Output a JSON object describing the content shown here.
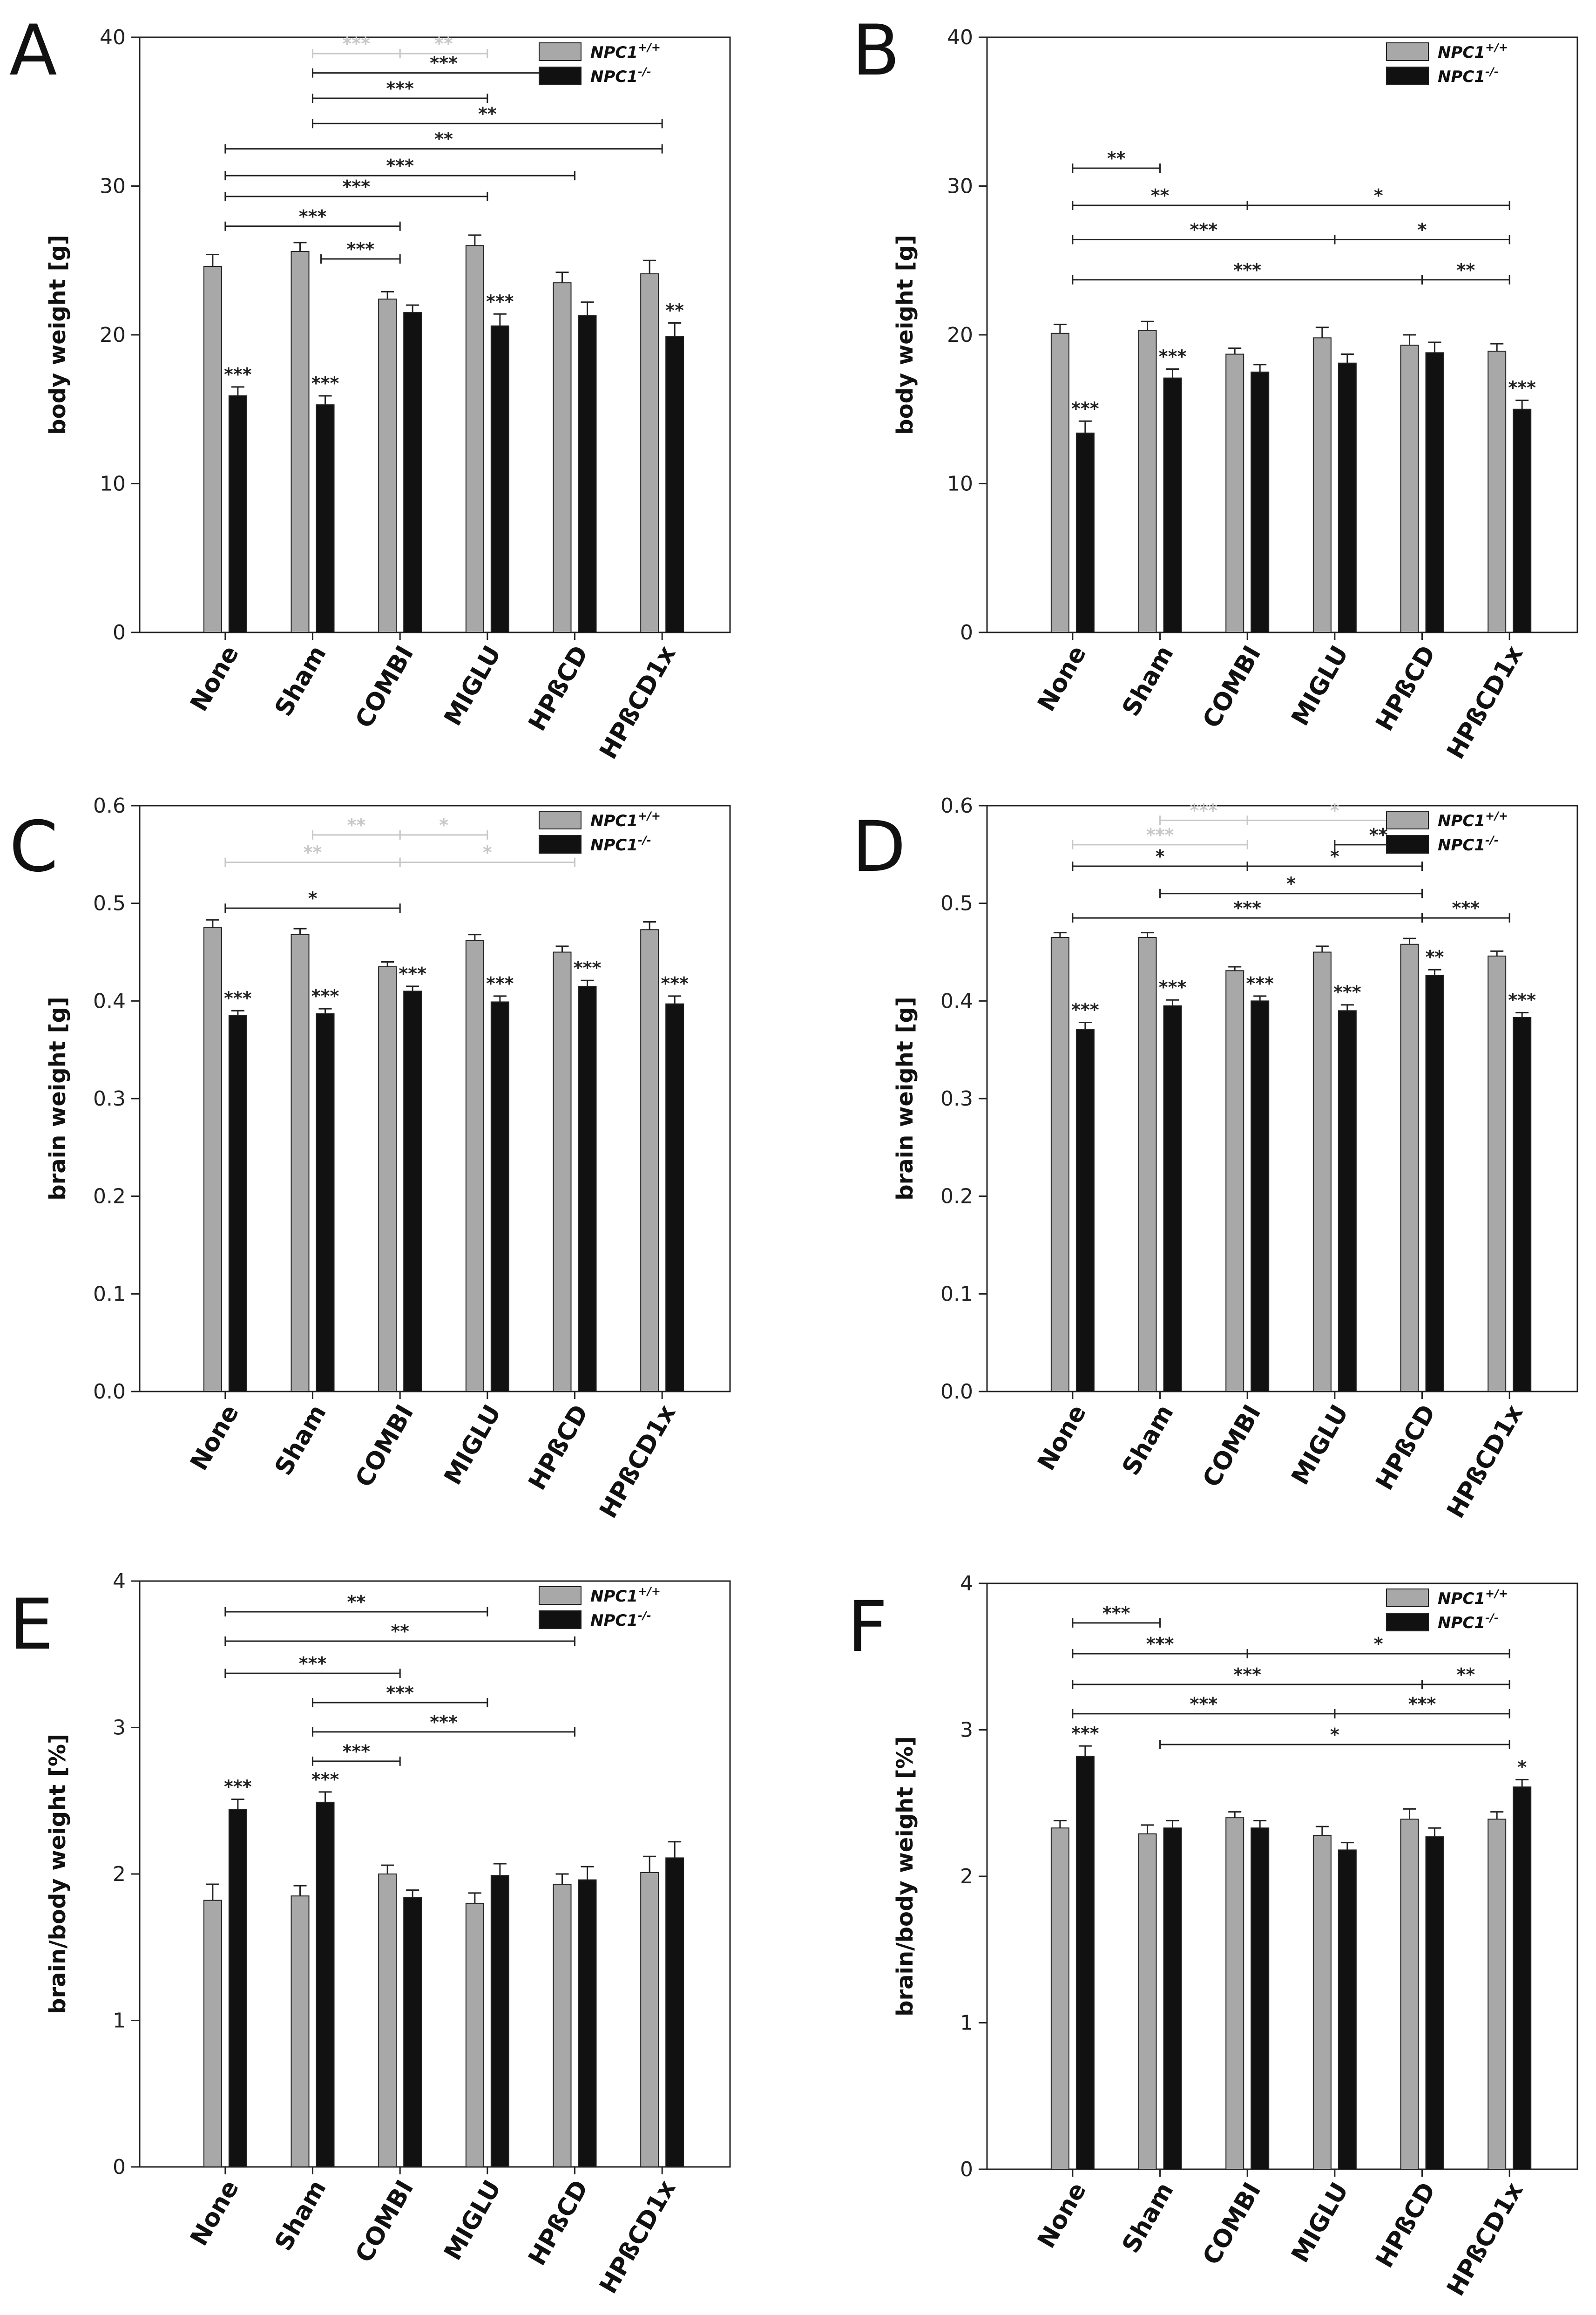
{
  "figure": {
    "legend_wt": "NPC1",
    "legend_wt_sup": "+/+",
    "legend_ko": "NPC1",
    "legend_ko_sup": "-/-"
  },
  "colors": {
    "wt": "#a8a8a8",
    "ko": "#111111",
    "axis": "#222222",
    "bracket_dark": "#222222",
    "bracket_light": "#c8c8c8"
  },
  "chart_data": [
    {
      "panel": "A",
      "type": "bar",
      "ylabel": "body weight [g]",
      "ylim": [
        0,
        40
      ],
      "yticks": [
        0,
        10,
        20,
        30,
        40
      ],
      "ytick_labels": [
        "0",
        "10",
        "20",
        "30",
        "40"
      ],
      "categories": [
        "None",
        "Sham",
        "COMBI",
        "MIGLU",
        "HPßCD",
        "HPßCD1x"
      ],
      "series": [
        {
          "name": "NPC1+/+",
          "values": [
            24.6,
            25.6,
            22.4,
            26.0,
            23.5,
            24.1
          ],
          "errors": [
            0.8,
            0.6,
            0.5,
            0.7,
            0.7,
            0.9
          ],
          "stars": [
            "",
            "",
            "",
            "",
            "",
            ""
          ]
        },
        {
          "name": "NPC1-/-",
          "values": [
            15.9,
            15.3,
            21.5,
            20.6,
            21.3,
            19.9
          ],
          "errors": [
            0.6,
            0.6,
            0.5,
            0.8,
            0.9,
            0.9
          ],
          "stars": [
            "***",
            "***",
            "",
            "***",
            "",
            "**"
          ]
        }
      ],
      "brackets": [
        {
          "x1": 1,
          "x2": 2,
          "y": 38.9,
          "label": "***",
          "light": true,
          "mid": 1.52
        },
        {
          "x1": 2,
          "x2": 3,
          "y": 38.9,
          "label": "**",
          "light": true,
          "mid": 1.52
        },
        {
          "x1": 1,
          "x2": 4,
          "y": 37.6,
          "label": "***"
        },
        {
          "x1": 1,
          "x2": 3,
          "y": 35.9,
          "label": "***"
        },
        {
          "x1": 1,
          "x2": 5,
          "y": 34.2,
          "label": "**"
        },
        {
          "x1": 0,
          "x2": 5,
          "y": 32.5,
          "label": "**"
        },
        {
          "x1": 0,
          "x2": 4,
          "y": 30.7,
          "label": "***"
        },
        {
          "x1": 0,
          "x2": 3,
          "y": 29.3,
          "label": "***"
        },
        {
          "x1": 0,
          "x2": 2,
          "y": 27.3,
          "label": "***"
        },
        {
          "x1": 1,
          "x2": 2,
          "y": 25.1,
          "label": "***",
          "short": true
        }
      ]
    },
    {
      "panel": "B",
      "type": "bar",
      "ylabel": "body weight [g]",
      "ylim": [
        0,
        40
      ],
      "yticks": [
        0,
        10,
        20,
        30,
        40
      ],
      "ytick_labels": [
        "0",
        "10",
        "20",
        "30",
        "40"
      ],
      "categories": [
        "None",
        "Sham",
        "COMBI",
        "MIGLU",
        "HPßCD",
        "HPßCD1x"
      ],
      "series": [
        {
          "name": "NPC1+/+",
          "values": [
            20.1,
            20.3,
            18.7,
            19.8,
            19.3,
            18.9
          ],
          "errors": [
            0.6,
            0.6,
            0.4,
            0.7,
            0.7,
            0.5
          ],
          "stars": [
            "",
            "",
            "",
            "",
            "",
            ""
          ]
        },
        {
          "name": "NPC1-/-",
          "values": [
            13.4,
            17.1,
            17.5,
            18.1,
            18.8,
            15.0
          ],
          "errors": [
            0.8,
            0.6,
            0.5,
            0.6,
            0.7,
            0.6
          ],
          "stars": [
            "***",
            "***",
            "",
            "",
            "",
            "***"
          ]
        }
      ],
      "brackets": [
        {
          "x1": 0,
          "x2": 1,
          "y": 31.2,
          "label": "**"
        },
        {
          "x1": 0,
          "x2": 2,
          "y": 28.7,
          "label": "**"
        },
        {
          "x1": 2,
          "x2": 5,
          "y": 28.7,
          "label": "*"
        },
        {
          "x1": 0,
          "x2": 3,
          "y": 26.4,
          "label": "***"
        },
        {
          "x1": 3,
          "x2": 5,
          "y": 26.4,
          "label": "*"
        },
        {
          "x1": 0,
          "x2": 4,
          "y": 23.7,
          "label": "***"
        },
        {
          "x1": 4,
          "x2": 5,
          "y": 23.7,
          "label": "**"
        }
      ]
    },
    {
      "panel": "C",
      "type": "bar",
      "ylabel": "brain weight [g]",
      "ylim": [
        0,
        0.6
      ],
      "yticks": [
        0,
        0.1,
        0.2,
        0.3,
        0.4,
        0.5,
        0.6
      ],
      "ytick_labels": [
        "0.0",
        "0.1",
        "0.2",
        "0.3",
        "0.4",
        "0.5",
        "0.6"
      ],
      "categories": [
        "None",
        "Sham",
        "COMBI",
        "MIGLU",
        "HPßCD",
        "HPßCD1x"
      ],
      "series": [
        {
          "name": "NPC1+/+",
          "values": [
            0.475,
            0.468,
            0.435,
            0.462,
            0.45,
            0.473
          ],
          "errors": [
            0.008,
            0.006,
            0.005,
            0.006,
            0.006,
            0.008
          ],
          "stars": [
            "",
            "",
            "",
            "",
            "",
            ""
          ]
        },
        {
          "name": "NPC1-/-",
          "values": [
            0.385,
            0.387,
            0.41,
            0.399,
            0.415,
            0.397
          ],
          "errors": [
            0.005,
            0.005,
            0.005,
            0.006,
            0.006,
            0.008
          ],
          "stars": [
            "***",
            "***",
            "***",
            "***",
            "***",
            "***"
          ]
        }
      ],
      "brackets": [
        {
          "x1": 1,
          "x2": 2,
          "y": 0.57,
          "label": "**",
          "light": true
        },
        {
          "x1": 2,
          "x2": 3,
          "y": 0.57,
          "label": "*",
          "light": true
        },
        {
          "x1": 0,
          "x2": 2,
          "y": 0.542,
          "label": "**",
          "light": true
        },
        {
          "x1": 2,
          "x2": 4,
          "y": 0.542,
          "label": "*",
          "light": true
        },
        {
          "x1": 0,
          "x2": 2,
          "y": 0.495,
          "label": "*"
        }
      ]
    },
    {
      "panel": "D",
      "type": "bar",
      "ylabel": "brain weight [g]",
      "ylim": [
        0,
        0.6
      ],
      "yticks": [
        0,
        0.1,
        0.2,
        0.3,
        0.4,
        0.5,
        0.6
      ],
      "ytick_labels": [
        "0.0",
        "0.1",
        "0.2",
        "0.3",
        "0.4",
        "0.5",
        "0.6"
      ],
      "categories": [
        "None",
        "Sham",
        "COMBI",
        "MIGLU",
        "HPßCD",
        "HPßCD1x"
      ],
      "series": [
        {
          "name": "NPC1+/+",
          "values": [
            0.465,
            0.465,
            0.431,
            0.45,
            0.458,
            0.446
          ],
          "errors": [
            0.005,
            0.005,
            0.004,
            0.006,
            0.006,
            0.005
          ],
          "stars": [
            "",
            "",
            "",
            "",
            "",
            ""
          ]
        },
        {
          "name": "NPC1-/-",
          "values": [
            0.371,
            0.395,
            0.4,
            0.39,
            0.426,
            0.383
          ],
          "errors": [
            0.007,
            0.006,
            0.005,
            0.006,
            0.006,
            0.005
          ],
          "stars": [
            "***",
            "***",
            "***",
            "***",
            "**",
            "***"
          ]
        }
      ],
      "brackets": [
        {
          "x1": 1,
          "x2": 2,
          "y": 0.585,
          "label": "***",
          "light": true
        },
        {
          "x1": 2,
          "x2": 4,
          "y": 0.585,
          "label": "*",
          "light": true
        },
        {
          "x1": 0,
          "x2": 2,
          "y": 0.56,
          "label": "***",
          "light": true
        },
        {
          "x1": 3,
          "x2": 4,
          "y": 0.56,
          "label": "**"
        },
        {
          "x1": 0,
          "x2": 2,
          "y": 0.538,
          "label": "*"
        },
        {
          "x1": 2,
          "x2": 4,
          "y": 0.538,
          "label": "*"
        },
        {
          "x1": 1,
          "x2": 4,
          "y": 0.51,
          "label": "*"
        },
        {
          "x1": 0,
          "x2": 4,
          "y": 0.485,
          "label": "***"
        },
        {
          "x1": 4,
          "x2": 5,
          "y": 0.485,
          "label": "***"
        }
      ]
    },
    {
      "panel": "E",
      "type": "bar",
      "ylabel": "brain/body weight [%]",
      "ylim": [
        0,
        4
      ],
      "yticks": [
        0,
        1,
        2,
        3,
        4
      ],
      "ytick_labels": [
        "0",
        "1",
        "2",
        "3",
        "4"
      ],
      "categories": [
        "None",
        "Sham",
        "COMBI",
        "MIGLU",
        "HPßCD",
        "HPßCD1x"
      ],
      "series": [
        {
          "name": "NPC1+/+",
          "values": [
            1.82,
            1.85,
            2.0,
            1.8,
            1.93,
            2.01
          ],
          "errors": [
            0.11,
            0.07,
            0.06,
            0.07,
            0.07,
            0.11
          ],
          "stars": [
            "",
            "",
            "",
            "",
            "",
            ""
          ]
        },
        {
          "name": "NPC1-/-",
          "values": [
            2.44,
            2.49,
            1.84,
            1.99,
            1.96,
            2.11
          ],
          "errors": [
            0.07,
            0.07,
            0.05,
            0.08,
            0.09,
            0.11
          ],
          "stars": [
            "***",
            "***",
            "",
            "",
            "",
            ""
          ]
        }
      ],
      "brackets": [
        {
          "x1": 0,
          "x2": 3,
          "y": 3.79,
          "label": "**"
        },
        {
          "x1": 0,
          "x2": 4,
          "y": 3.59,
          "label": "**"
        },
        {
          "x1": 0,
          "x2": 2,
          "y": 3.37,
          "label": "***"
        },
        {
          "x1": 1,
          "x2": 3,
          "y": 3.17,
          "label": "***"
        },
        {
          "x1": 1,
          "x2": 4,
          "y": 2.97,
          "label": "***"
        },
        {
          "x1": 1,
          "x2": 2,
          "y": 2.77,
          "label": "***"
        }
      ]
    },
    {
      "panel": "F",
      "type": "bar",
      "ylabel": "brain/body weight [%]",
      "ylim": [
        0,
        4
      ],
      "yticks": [
        0,
        1,
        2,
        3,
        4
      ],
      "ytick_labels": [
        "0",
        "1",
        "2",
        "3",
        "4"
      ],
      "categories": [
        "None",
        "Sham",
        "COMBI",
        "MIGLU",
        "HPßCD",
        "HPßCD1x"
      ],
      "series": [
        {
          "name": "NPC1+/+",
          "values": [
            2.33,
            2.29,
            2.4,
            2.28,
            2.39,
            2.39
          ],
          "errors": [
            0.05,
            0.06,
            0.04,
            0.06,
            0.07,
            0.05
          ],
          "stars": [
            "",
            "",
            "",
            "",
            "",
            ""
          ]
        },
        {
          "name": "NPC1-/-",
          "values": [
            2.82,
            2.33,
            2.33,
            2.18,
            2.27,
            2.61
          ],
          "errors": [
            0.07,
            0.05,
            0.05,
            0.05,
            0.06,
            0.05
          ],
          "stars": [
            "***",
            "",
            "",
            "",
            "",
            "*"
          ]
        }
      ],
      "brackets": [
        {
          "x1": 0,
          "x2": 1,
          "y": 3.73,
          "label": "***"
        },
        {
          "x1": 0,
          "x2": 2,
          "y": 3.52,
          "label": "***"
        },
        {
          "x1": 2,
          "x2": 5,
          "y": 3.52,
          "label": "*"
        },
        {
          "x1": 0,
          "x2": 4,
          "y": 3.31,
          "label": "***"
        },
        {
          "x1": 4,
          "x2": 5,
          "y": 3.31,
          "label": "**"
        },
        {
          "x1": 0,
          "x2": 3,
          "y": 3.11,
          "label": "***"
        },
        {
          "x1": 3,
          "x2": 5,
          "y": 3.11,
          "label": "***"
        },
        {
          "x1": 1,
          "x2": 5,
          "y": 2.9,
          "label": "*"
        }
      ]
    }
  ]
}
